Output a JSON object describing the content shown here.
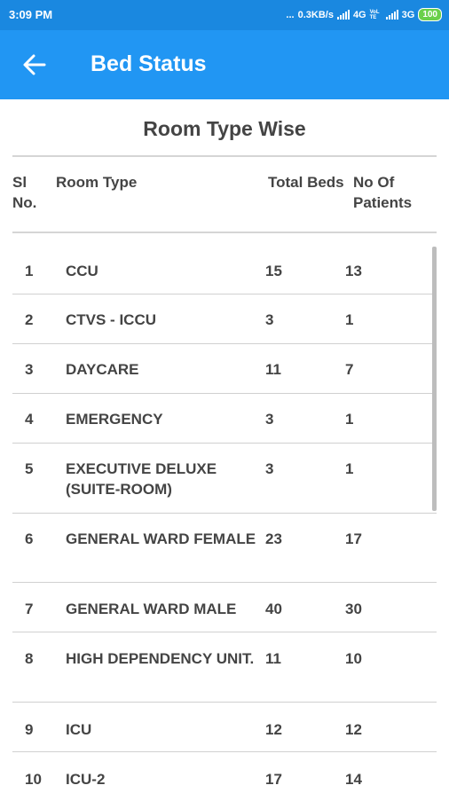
{
  "status_bar": {
    "time": "3:09 PM",
    "dots": "...",
    "network_speed": "0.3KB/s",
    "net1": "4G",
    "volte": "VoLTE",
    "net2": "3G",
    "battery": "100"
  },
  "app_bar": {
    "title": "Bed Status",
    "back_icon": "arrow-back-icon"
  },
  "section_title": "Room Type Wise",
  "table": {
    "headers": {
      "sl": "Sl No.",
      "room_type": "Room Type",
      "total_beds": "Total Beds",
      "patients": "No Of Patients"
    },
    "rows": [
      {
        "sl": "1",
        "room_type": "CCU",
        "total_beds": "15",
        "patients": "13"
      },
      {
        "sl": "2",
        "room_type": "CTVS - ICCU",
        "total_beds": "3",
        "patients": "1"
      },
      {
        "sl": "3",
        "room_type": "DAYCARE",
        "total_beds": "11",
        "patients": "7"
      },
      {
        "sl": "4",
        "room_type": "EMERGENCY",
        "total_beds": "3",
        "patients": "1"
      },
      {
        "sl": "5",
        "room_type": "EXECUTIVE DELUXE (SUITE-ROOM)",
        "total_beds": "3",
        "patients": "1"
      },
      {
        "sl": "6",
        "room_type": "GENERAL WARD FEMALE",
        "total_beds": "23",
        "patients": "17"
      },
      {
        "sl": "7",
        "room_type": "GENERAL WARD MALE",
        "total_beds": "40",
        "patients": "30"
      },
      {
        "sl": "8",
        "room_type": "HIGH DEPENDENCY UNIT.",
        "total_beds": "11",
        "patients": "10"
      },
      {
        "sl": "9",
        "room_type": "ICU",
        "total_beds": "12",
        "patients": "12"
      },
      {
        "sl": "10",
        "room_type": "ICU-2",
        "total_beds": "17",
        "patients": "14"
      }
    ]
  }
}
